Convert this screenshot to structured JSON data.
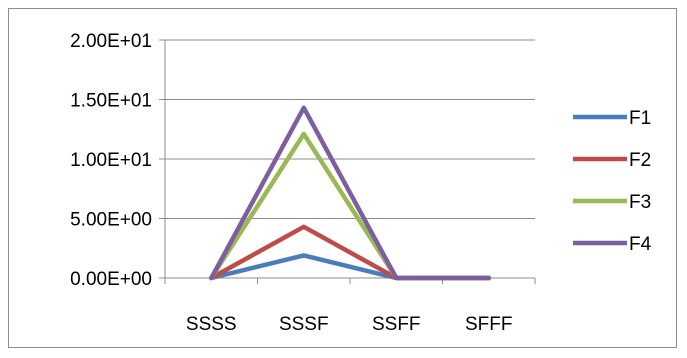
{
  "chart_data": {
    "type": "line",
    "categories": [
      "SSSS",
      "SSSF",
      "SSFF",
      "SFFF"
    ],
    "y_tick_labels": [
      "0.00E+00",
      "5.00E+00",
      "1.00E+01",
      "1.50E+01",
      "2.00E+01"
    ],
    "y_ticks": [
      0,
      5,
      10,
      15,
      20
    ],
    "ylim": [
      0,
      20
    ],
    "grid": "horizontal",
    "legend_position": "right",
    "series": [
      {
        "name": "F1",
        "color": "#4a7ebb",
        "values": [
          0,
          1.9,
          0,
          0
        ]
      },
      {
        "name": "F2",
        "color": "#be4b48",
        "values": [
          0,
          4.3,
          0,
          0
        ]
      },
      {
        "name": "F3",
        "color": "#98b954",
        "values": [
          0,
          12.1,
          0,
          0
        ]
      },
      {
        "name": "F4",
        "color": "#7d5fa0",
        "values": [
          0,
          14.3,
          0,
          0
        ]
      }
    ]
  }
}
